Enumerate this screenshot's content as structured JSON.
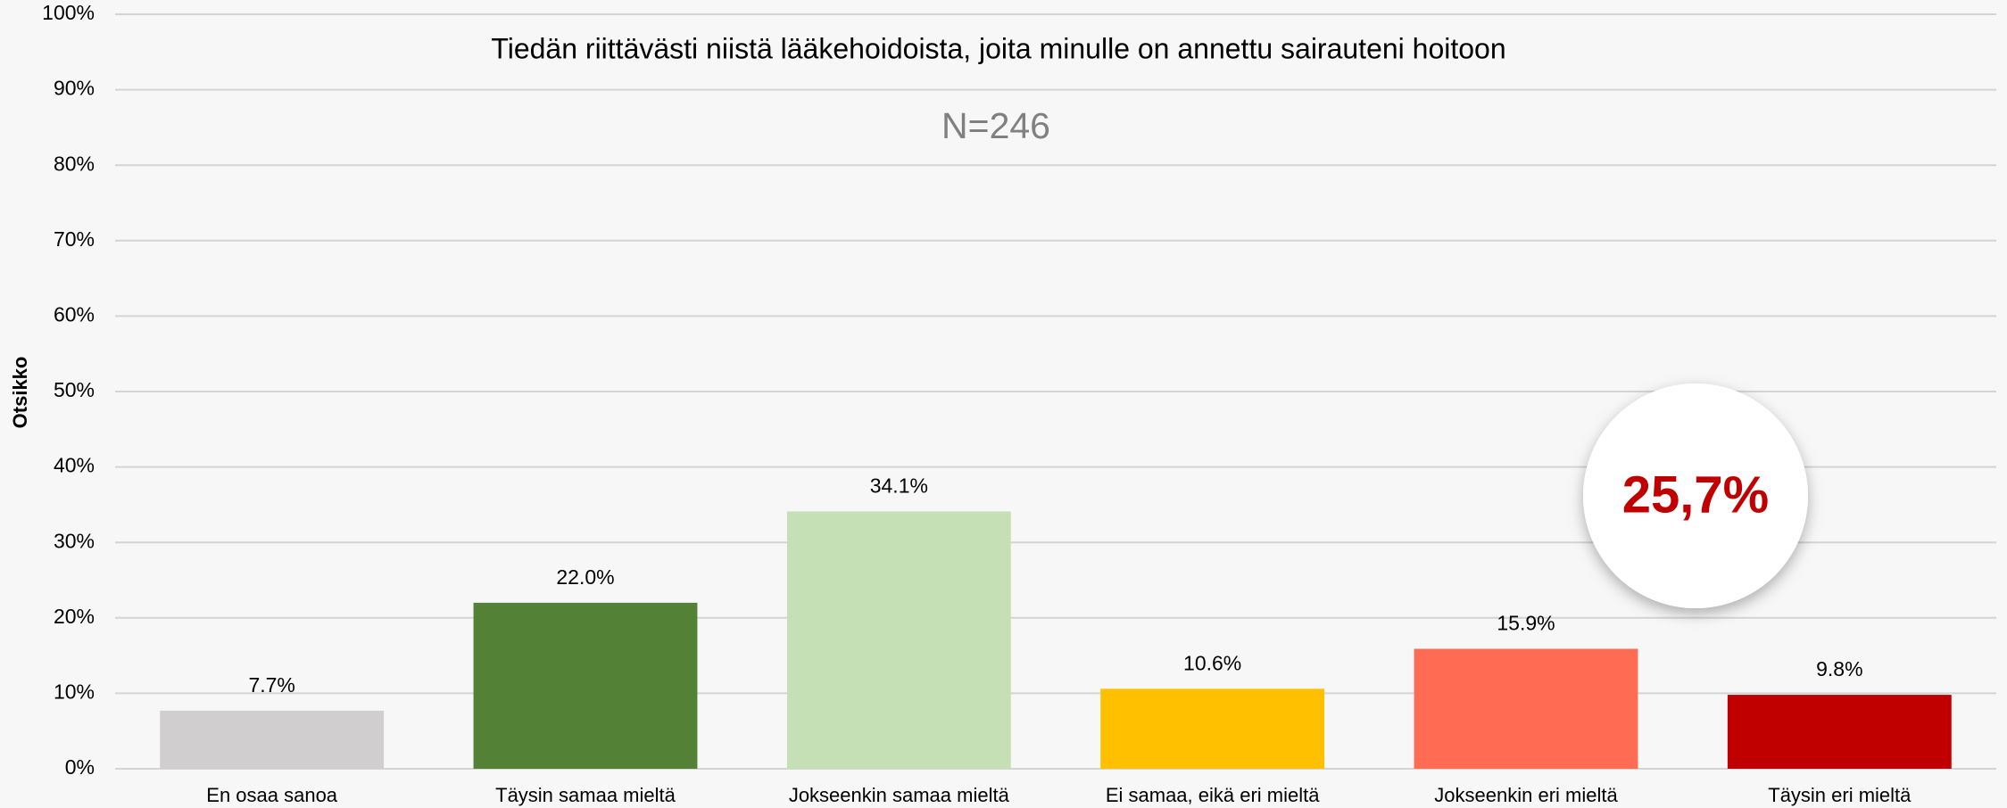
{
  "chart_data": {
    "type": "bar",
    "title": "Tiedän riittävästi niistä lääkehoidoista, joita minulle on annettu sairauteni hoitoon",
    "subtitle": "N=246",
    "y_label": "Otsikko",
    "annotation": "25,7%",
    "categories": [
      "En osaa sanoa",
      "Täysin samaa mieltä",
      "Jokseenkin samaa mieltä",
      "Ei samaa, eikä eri mieltä",
      "Jokseenkin eri mieltä",
      "Täysin eri mieltä"
    ],
    "values": [
      7.7,
      22.0,
      34.1,
      10.6,
      15.9,
      9.8
    ],
    "value_labels": [
      "7.7%",
      "22.0%",
      "34.1%",
      "10.6%",
      "15.9%",
      "9.8%"
    ],
    "colors": [
      "#d0cece",
      "#538135",
      "#c5e0b4",
      "#ffc000",
      "#ff6b53",
      "#c00000"
    ],
    "ylim": [
      0,
      100
    ],
    "yticks": [
      {
        "value": 0,
        "label": "0%"
      },
      {
        "value": 10,
        "label": "10%"
      },
      {
        "value": 20,
        "label": "20%"
      },
      {
        "value": 30,
        "label": "30%"
      },
      {
        "value": 40,
        "label": "40%"
      },
      {
        "value": 50,
        "label": "50%"
      },
      {
        "value": 60,
        "label": "60%"
      },
      {
        "value": 70,
        "label": "70%"
      },
      {
        "value": 80,
        "label": "80%"
      },
      {
        "value": 90,
        "label": "90%"
      },
      {
        "value": 100,
        "label": "100%"
      }
    ],
    "grid": true
  }
}
